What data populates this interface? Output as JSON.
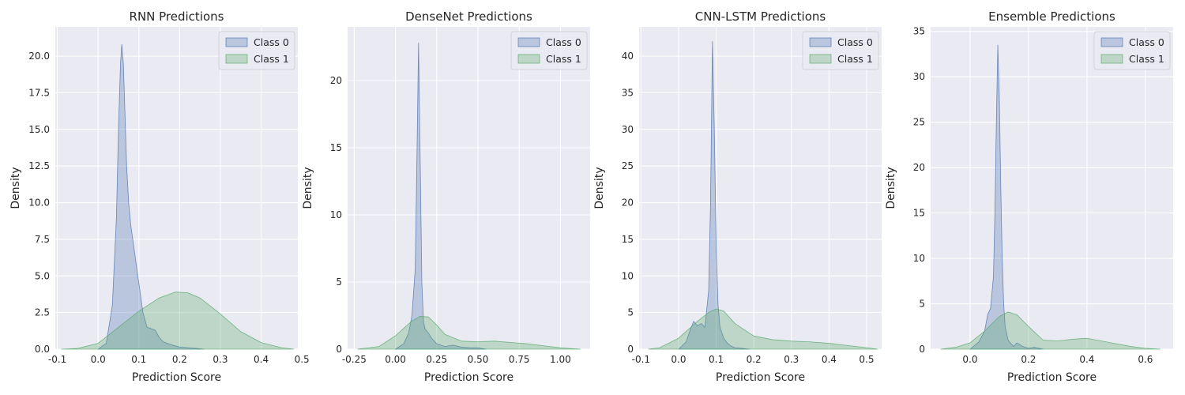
{
  "figure": {
    "background": "#ffffff",
    "plot_background": "#eaeaf2",
    "grid_color": "#ffffff",
    "text_color": "#262626"
  },
  "chart_data": [
    {
      "type": "area",
      "title": "RNN Predictions",
      "xlabel": "Prediction Score",
      "ylabel": "Density",
      "xlim": [
        -0.105,
        0.49
      ],
      "ylim": [
        0,
        22
      ],
      "xticks": [
        -0.1,
        0.0,
        0.1,
        0.2,
        0.3,
        0.4,
        0.5
      ],
      "xtick_labels": [
        "-0.1",
        "0.0",
        "0.1",
        "0.2",
        "0.3",
        "0.4",
        "0.5"
      ],
      "yticks": [
        0,
        2.5,
        5,
        7.5,
        10,
        12.5,
        15,
        17.5,
        20
      ],
      "ytick_labels": [
        "0.0",
        "2.5",
        "5.0",
        "7.5",
        "10.0",
        "12.5",
        "15.0",
        "17.5",
        "20.0"
      ],
      "grid": true,
      "legend": "top-right",
      "series": [
        {
          "name": "Class 0",
          "color": "#4c72b0",
          "x": [
            0.0,
            0.02,
            0.035,
            0.045,
            0.05,
            0.055,
            0.058,
            0.062,
            0.066,
            0.07,
            0.075,
            0.08,
            0.09,
            0.1,
            0.11,
            0.12,
            0.13,
            0.14,
            0.15,
            0.16,
            0.18,
            0.2,
            0.22,
            0.24,
            0.26
          ],
          "y": [
            0,
            0.4,
            3.0,
            9.0,
            15.0,
            19.5,
            20.8,
            19.5,
            16.0,
            12.5,
            10.0,
            8.5,
            6.5,
            4.5,
            2.5,
            1.5,
            1.4,
            1.3,
            0.8,
            0.5,
            0.3,
            0.15,
            0.1,
            0.05,
            0
          ]
        },
        {
          "name": "Class 1",
          "color": "#55a868",
          "x": [
            -0.09,
            -0.05,
            0.0,
            0.05,
            0.1,
            0.15,
            0.19,
            0.22,
            0.25,
            0.3,
            0.35,
            0.4,
            0.45,
            0.48
          ],
          "y": [
            0,
            0.05,
            0.4,
            1.5,
            2.6,
            3.5,
            3.9,
            3.85,
            3.5,
            2.4,
            1.2,
            0.45,
            0.1,
            0
          ]
        }
      ]
    },
    {
      "type": "area",
      "title": "DenseNet Predictions",
      "xlabel": "Prediction Score",
      "ylabel": "Density",
      "xlim": [
        -0.29,
        1.18
      ],
      "ylim": [
        0,
        24
      ],
      "xticks": [
        -0.25,
        0.0,
        0.25,
        0.5,
        0.75,
        1.0
      ],
      "xtick_labels": [
        "-0.25",
        "0.00",
        "0.25",
        "0.50",
        "0.75",
        "1.00"
      ],
      "yticks": [
        0,
        5,
        10,
        15,
        20
      ],
      "ytick_labels": [
        "0",
        "5",
        "10",
        "15",
        "20"
      ],
      "grid": true,
      "legend": "top-right",
      "series": [
        {
          "name": "Class 0",
          "color": "#4c72b0",
          "x": [
            0.0,
            0.05,
            0.08,
            0.1,
            0.12,
            0.13,
            0.14,
            0.15,
            0.16,
            0.17,
            0.18,
            0.2,
            0.22,
            0.25,
            0.3,
            0.35,
            0.4,
            0.45,
            0.5,
            0.55
          ],
          "y": [
            0,
            0.4,
            1.2,
            2.5,
            6.0,
            14.0,
            22.8,
            14.0,
            5.0,
            2.0,
            1.5,
            1.2,
            0.8,
            0.4,
            0.2,
            0.3,
            0.15,
            0.1,
            0.1,
            0
          ]
        },
        {
          "name": "Class 1",
          "color": "#55a868",
          "x": [
            -0.23,
            -0.1,
            0.0,
            0.1,
            0.15,
            0.2,
            0.25,
            0.3,
            0.4,
            0.5,
            0.6,
            0.7,
            0.8,
            0.9,
            1.0,
            1.12
          ],
          "y": [
            0,
            0.2,
            1.0,
            2.1,
            2.45,
            2.4,
            1.8,
            1.1,
            0.6,
            0.55,
            0.6,
            0.5,
            0.4,
            0.25,
            0.1,
            0
          ]
        }
      ]
    },
    {
      "type": "area",
      "title": "CNN-LSTM Predictions",
      "xlabel": "Prediction Score",
      "ylabel": "Density",
      "xlim": [
        -0.105,
        0.54
      ],
      "ylim": [
        0,
        44
      ],
      "xticks": [
        -0.1,
        0.0,
        0.1,
        0.2,
        0.3,
        0.4,
        0.5
      ],
      "xtick_labels": [
        "-0.1",
        "0.0",
        "0.1",
        "0.2",
        "0.3",
        "0.4",
        "0.5"
      ],
      "yticks": [
        0,
        5,
        10,
        15,
        20,
        25,
        30,
        35,
        40
      ],
      "ytick_labels": [
        "0",
        "5",
        "10",
        "15",
        "20",
        "25",
        "30",
        "35",
        "40"
      ],
      "grid": true,
      "legend": "top-right",
      "series": [
        {
          "name": "Class 0",
          "color": "#4c72b0",
          "x": [
            0.0,
            0.02,
            0.03,
            0.04,
            0.05,
            0.06,
            0.07,
            0.08,
            0.085,
            0.09,
            0.095,
            0.1,
            0.105,
            0.11,
            0.12,
            0.13,
            0.14,
            0.15,
            0.17,
            0.19
          ],
          "y": [
            0,
            1.0,
            2.5,
            3.8,
            3.2,
            3.5,
            3.0,
            8.0,
            20.0,
            42.0,
            30.0,
            14.0,
            6.0,
            3.0,
            1.5,
            0.8,
            0.4,
            0.2,
            0.1,
            0
          ]
        },
        {
          "name": "Class 1",
          "color": "#55a868",
          "x": [
            -0.08,
            -0.05,
            0.0,
            0.05,
            0.08,
            0.1,
            0.12,
            0.15,
            0.2,
            0.25,
            0.3,
            0.35,
            0.4,
            0.45,
            0.5,
            0.53
          ],
          "y": [
            0,
            0.2,
            1.5,
            3.8,
            5.0,
            5.5,
            5.2,
            3.5,
            1.8,
            1.3,
            1.1,
            1.0,
            0.8,
            0.5,
            0.2,
            0
          ]
        }
      ]
    },
    {
      "type": "area",
      "title": "Ensemble Predictions",
      "xlabel": "Prediction Score",
      "ylabel": "Density",
      "xlim": [
        -0.135,
        0.695
      ],
      "ylim": [
        0,
        35.5
      ],
      "xticks": [
        0.0,
        0.2,
        0.4,
        0.6
      ],
      "xtick_labels": [
        "0.0",
        "0.2",
        "0.4",
        "0.6"
      ],
      "yticks": [
        0,
        5,
        10,
        15,
        20,
        25,
        30,
        35
      ],
      "ytick_labels": [
        "0",
        "5",
        "10",
        "15",
        "20",
        "25",
        "30",
        "35"
      ],
      "grid": true,
      "legend": "top-right",
      "series": [
        {
          "name": "Class 0",
          "color": "#4c72b0",
          "x": [
            0.0,
            0.03,
            0.05,
            0.06,
            0.07,
            0.08,
            0.085,
            0.09,
            0.095,
            0.1,
            0.105,
            0.11,
            0.115,
            0.12,
            0.13,
            0.14,
            0.15,
            0.16,
            0.18,
            0.2,
            0.22,
            0.25
          ],
          "y": [
            0,
            0.8,
            2.0,
            3.8,
            4.5,
            8.0,
            15.0,
            25.0,
            33.5,
            28.0,
            18.0,
            10.0,
            5.0,
            2.5,
            1.0,
            0.6,
            0.3,
            0.7,
            0.3,
            0.1,
            0.2,
            0
          ]
        },
        {
          "name": "Class 1",
          "color": "#55a868",
          "x": [
            -0.1,
            -0.05,
            0.0,
            0.05,
            0.1,
            0.13,
            0.16,
            0.2,
            0.25,
            0.3,
            0.35,
            0.4,
            0.45,
            0.5,
            0.55,
            0.6,
            0.65
          ],
          "y": [
            0,
            0.2,
            0.7,
            2.0,
            3.6,
            4.1,
            3.8,
            2.5,
            1.0,
            0.9,
            1.1,
            1.2,
            0.9,
            0.6,
            0.3,
            0.1,
            0
          ]
        }
      ]
    }
  ]
}
